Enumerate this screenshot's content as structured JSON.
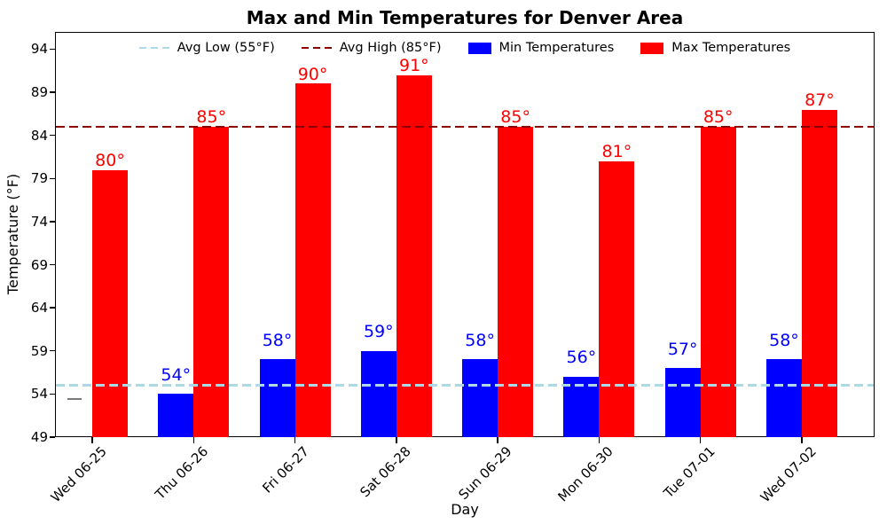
{
  "chart_data": {
    "type": "bar",
    "title": "Max and Min Temperatures for Denver Area",
    "xlabel": "Day",
    "ylabel": "Temperature (°F)",
    "categories": [
      "Wed 06-25",
      "Thu 06-26",
      "Fri 06-27",
      "Sat 06-28",
      "Sun 06-29",
      "Mon 06-30",
      "Tue 07-01",
      "Wed 07-02"
    ],
    "series": [
      {
        "name": "Min Temperatures",
        "color": "#0000ff",
        "values": [
          null,
          54,
          58,
          59,
          58,
          56,
          57,
          58
        ],
        "data_label_suffix": "°"
      },
      {
        "name": "Max Temperatures",
        "color": "#ff0000",
        "values": [
          80,
          85,
          90,
          91,
          85,
          81,
          85,
          87
        ],
        "data_label_suffix": "°"
      }
    ],
    "missing_value_marker": {
      "series": "Min Temperatures",
      "category": "Wed 06-25",
      "display": "dash",
      "approx_value": 53.4,
      "color": "#7a7a7a"
    },
    "reference_lines": [
      {
        "label": "Avg Low (55°F)",
        "value": 55,
        "color": "#add8e6",
        "style": "dashed"
      },
      {
        "label": "Avg High (85°F)",
        "value": 85,
        "color": "#8b0000",
        "style": "dashed"
      }
    ],
    "legend": [
      {
        "label": "Avg Low (55°F)",
        "swatch": "dashed-line",
        "color": "#add8e6"
      },
      {
        "label": "Avg High (85°F)",
        "swatch": "dashed-line",
        "color": "#8b0000"
      },
      {
        "label": "Min Temperatures",
        "swatch": "patch",
        "color": "#0000ff"
      },
      {
        "label": "Max Temperatures",
        "swatch": "patch",
        "color": "#ff0000"
      }
    ],
    "yticks": [
      49,
      54,
      59,
      64,
      69,
      74,
      79,
      84,
      89,
      94
    ],
    "ylim": [
      49,
      96
    ],
    "grid": false,
    "legend_position": "upper center",
    "background": "#ffffff"
  }
}
